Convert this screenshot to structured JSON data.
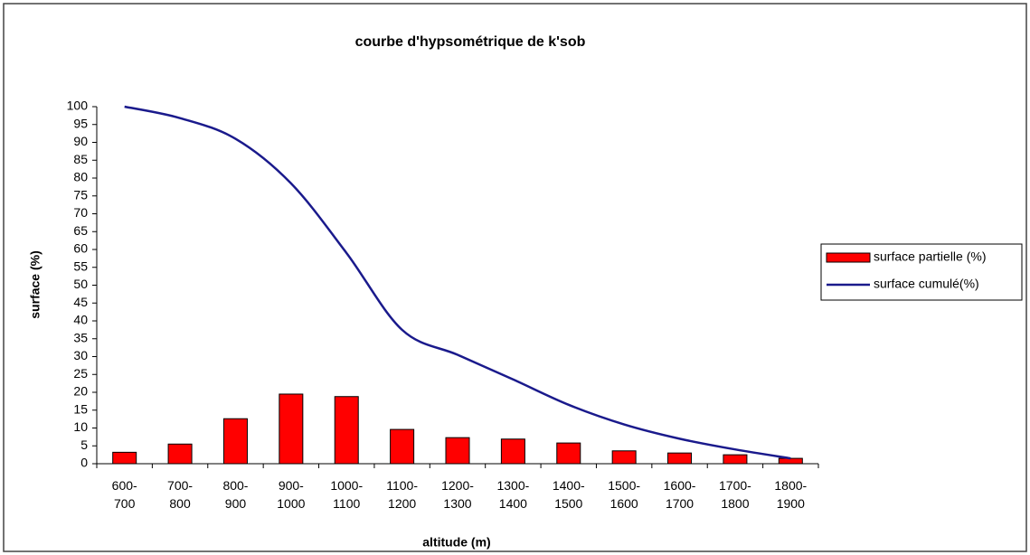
{
  "chart_data": {
    "type": "bar",
    "title": "courbe d'hypsométrique de k'sob",
    "x_label": "altitude (m)",
    "y_label": "surface (%)",
    "categories": [
      "600-\n700",
      "700-\n800",
      "800-\n900",
      "900-\n1000",
      "1000-\n1100",
      "1100-\n1200",
      "1200-\n1300",
      "1300-\n1400",
      "1400-\n1500",
      "1500-\n1600",
      "1600-\n1700",
      "1700-\n1800",
      "1800-\n1900"
    ],
    "series": [
      {
        "name": "surface partielle (%)",
        "type": "bar",
        "color": "#ff0000",
        "values": [
          3.2,
          5.5,
          12.6,
          19.5,
          18.8,
          9.6,
          7.3,
          6.9,
          5.8,
          3.6,
          3.0,
          2.5,
          1.5
        ]
      },
      {
        "name": "surface cumulé(%)",
        "type": "line",
        "color": "#1a1a8c",
        "values": [
          100,
          96.8,
          91,
          78.5,
          59,
          37.5,
          30.5,
          23.6,
          16.5,
          11,
          7,
          4,
          1.5
        ]
      }
    ],
    "ylim": [
      0,
      100
    ],
    "yticks": [
      0,
      5,
      10,
      15,
      20,
      25,
      30,
      35,
      40,
      45,
      50,
      55,
      60,
      65,
      70,
      75,
      80,
      85,
      90,
      95,
      100
    ],
    "grid": false,
    "legend": "right"
  }
}
